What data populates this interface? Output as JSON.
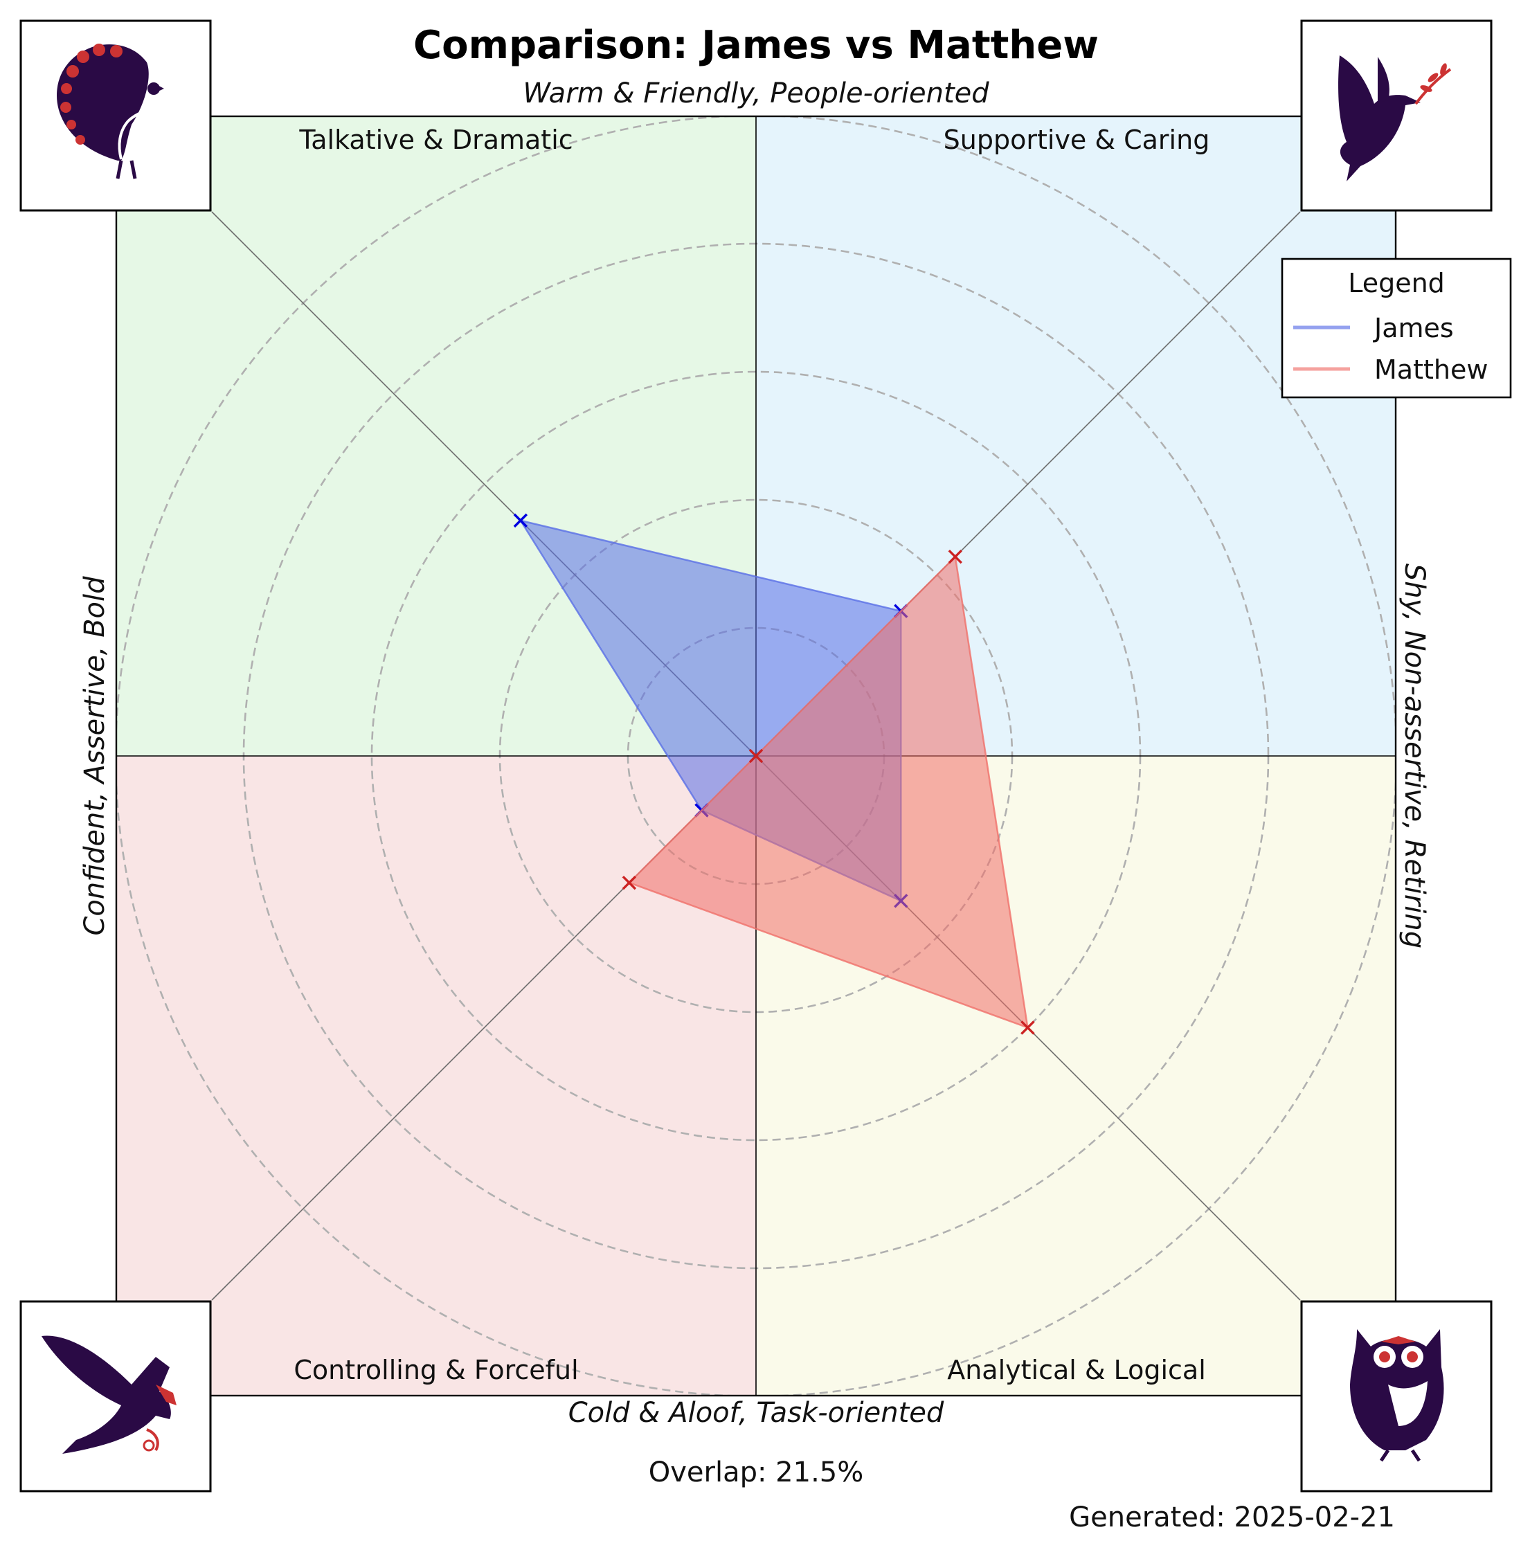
{
  "chart_data": {
    "type": "radar",
    "title": "Comparison: James vs Matthew",
    "axis_labels": {
      "top": "Warm & Friendly, People-oriented",
      "bottom": "Cold & Aloof, Task-oriented",
      "left": "Confident, Assertive, Bold",
      "right": "Shy, Non-assertive, Retiring"
    },
    "quadrants": [
      {
        "position": "top-left",
        "label": "Talkative & Dramatic",
        "color": "#e6f8e6",
        "icon": "peacock-icon"
      },
      {
        "position": "top-right",
        "label": "Supportive & Caring",
        "color": "#e5f4fc",
        "icon": "dove-icon"
      },
      {
        "position": "bottom-right",
        "label": "Analytical & Logical",
        "color": "#fafaea",
        "icon": "owl-icon"
      },
      {
        "position": "bottom-left",
        "label": "Controlling & Forceful",
        "color": "#f9e5e5",
        "icon": "eagle-icon"
      }
    ],
    "directions": [
      "Talkative & Dramatic",
      "Supportive & Caring",
      "Analytical & Logical",
      "Controlling & Forceful"
    ],
    "rmax": 5,
    "rings": [
      1,
      2,
      3,
      4,
      5
    ],
    "series": [
      {
        "name": "James",
        "color": "#5a6fe6",
        "marker_color": "#0000e0",
        "values": {
          "Talkative & Dramatic": 2.6,
          "Supportive & Caring": 1.6,
          "Analytical & Logical": 1.6,
          "Controlling & Forceful": 0.6
        }
      },
      {
        "name": "Matthew",
        "color": "#f0706a",
        "marker_color": "#cc2222",
        "values": {
          "Talkative & Dramatic": 0.0,
          "Supportive & Caring": 2.2,
          "Analytical & Logical": 3.0,
          "Controlling & Forceful": 1.4
        }
      }
    ],
    "legend": {
      "title": "Legend",
      "position": "top-right"
    },
    "grid": true
  },
  "footer": {
    "overlap": "Overlap: 21.5%",
    "generated": "Generated: 2025-02-21"
  },
  "colors": {
    "icon_dark": "#2a0a45",
    "icon_accent": "#cc3333"
  }
}
